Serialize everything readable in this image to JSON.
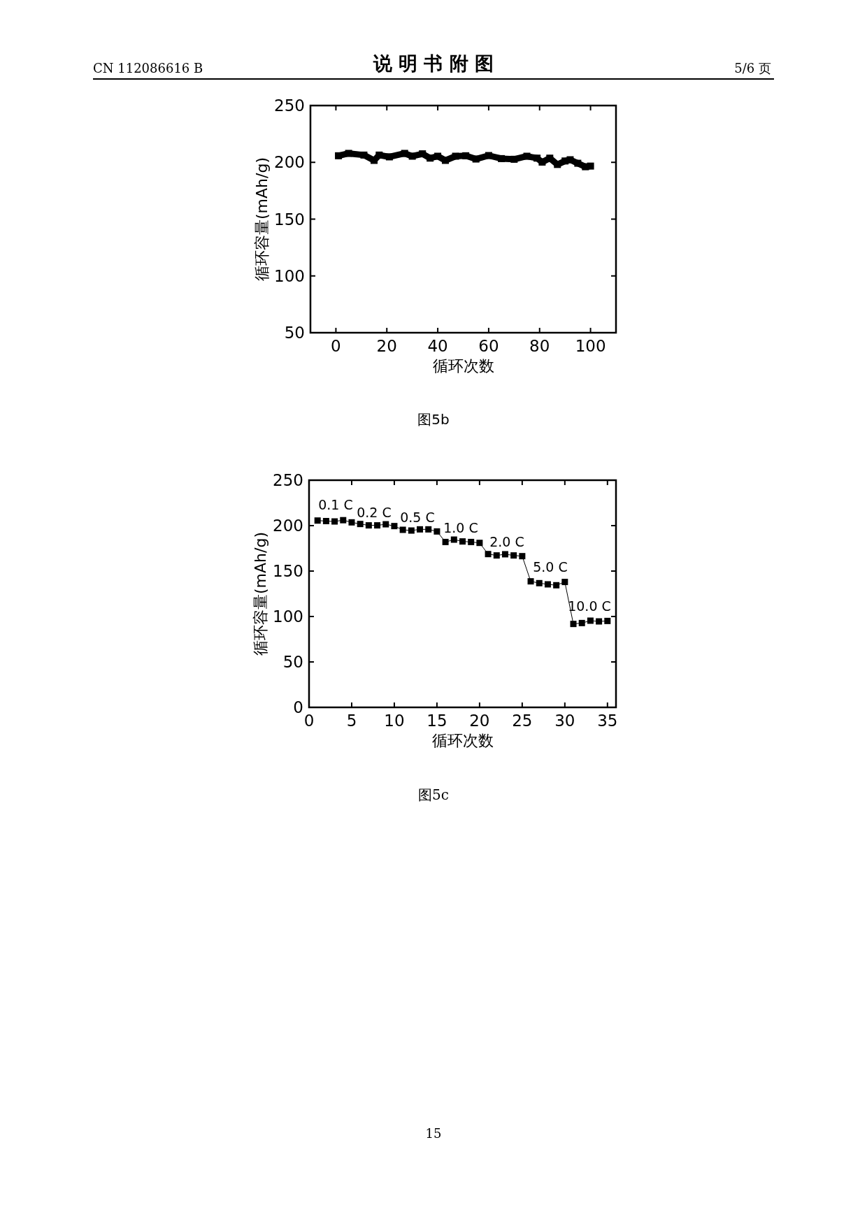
{
  "chart_data": [
    {
      "type": "line",
      "title": "说 明 书 附 图",
      "xlabel": "循环次数",
      "ylabel": "循环容量(mAh/g)",
      "xlim": [
        -10,
        110
      ],
      "xticks": [
        0,
        20,
        40,
        60,
        80,
        100
      ],
      "ylim": [
        50,
        250
      ],
      "yticks": [
        50,
        100,
        150,
        200,
        250
      ],
      "marker": "square",
      "line_style": "solid",
      "grid": false,
      "annotations": [
        "CN 112086616 B",
        "5/6 页",
        "图5b"
      ],
      "x": [
        1,
        5,
        11,
        15,
        17,
        21,
        27,
        30,
        34,
        37,
        40,
        43,
        47,
        51,
        55,
        60,
        65,
        70,
        75,
        79,
        81,
        84,
        87,
        90,
        92,
        95,
        98,
        100
      ],
      "series": [
        {
          "color": "#000000",
          "values": [
            205.8,
            207.9,
            206.4,
            201.7,
            206.4,
            204.8,
            207.9,
            205.4,
            207.5,
            203.7,
            205.4,
            201.7,
            205.4,
            205.8,
            202.9,
            206,
            203.3,
            202.7,
            205.4,
            203.7,
            200.2,
            203.7,
            198.1,
            201.2,
            202.3,
            199.2,
            196.1,
            196.7
          ]
        }
      ]
    },
    {
      "type": "line",
      "xlabel": "循环次数",
      "ylabel": "循环容量(mAh/g)",
      "xlim": [
        0,
        36
      ],
      "xticks": [
        0,
        5,
        10,
        15,
        20,
        25,
        30,
        35
      ],
      "ylim": [
        0,
        250
      ],
      "yticks": [
        0,
        50,
        100,
        150,
        200,
        250
      ],
      "marker": "square",
      "line_style": "solid",
      "grid": false,
      "annotations": [
        "图5c",
        "15",
        "0.1 C",
        "0.2 C",
        "0.5 C",
        "1.0 C",
        "2.0 C",
        "5.0 C",
        "10.0 C"
      ],
      "x": [
        1,
        2,
        3,
        4,
        5,
        6,
        7,
        8,
        9,
        10,
        11,
        12,
        13,
        14,
        15,
        16,
        17,
        18,
        19,
        20,
        21,
        22,
        23,
        24,
        25,
        26,
        27,
        28,
        29,
        30,
        31,
        32,
        33,
        34,
        35
      ],
      "series": [
        {
          "color": "#000000",
          "values": [
            205.6,
            205,
            204.6,
            206,
            203.6,
            201.8,
            200.3,
            200.3,
            201.5,
            199.5,
            195.4,
            194.6,
            195.9,
            195.9,
            193.6,
            182,
            184.6,
            182.6,
            182,
            181,
            168.7,
            167.2,
            168.5,
            167.2,
            166.4,
            138.7,
            136.7,
            135.4,
            134.4,
            138,
            91.8,
            92.8,
            95.4,
            94.6,
            95.1
          ]
        }
      ]
    }
  ]
}
